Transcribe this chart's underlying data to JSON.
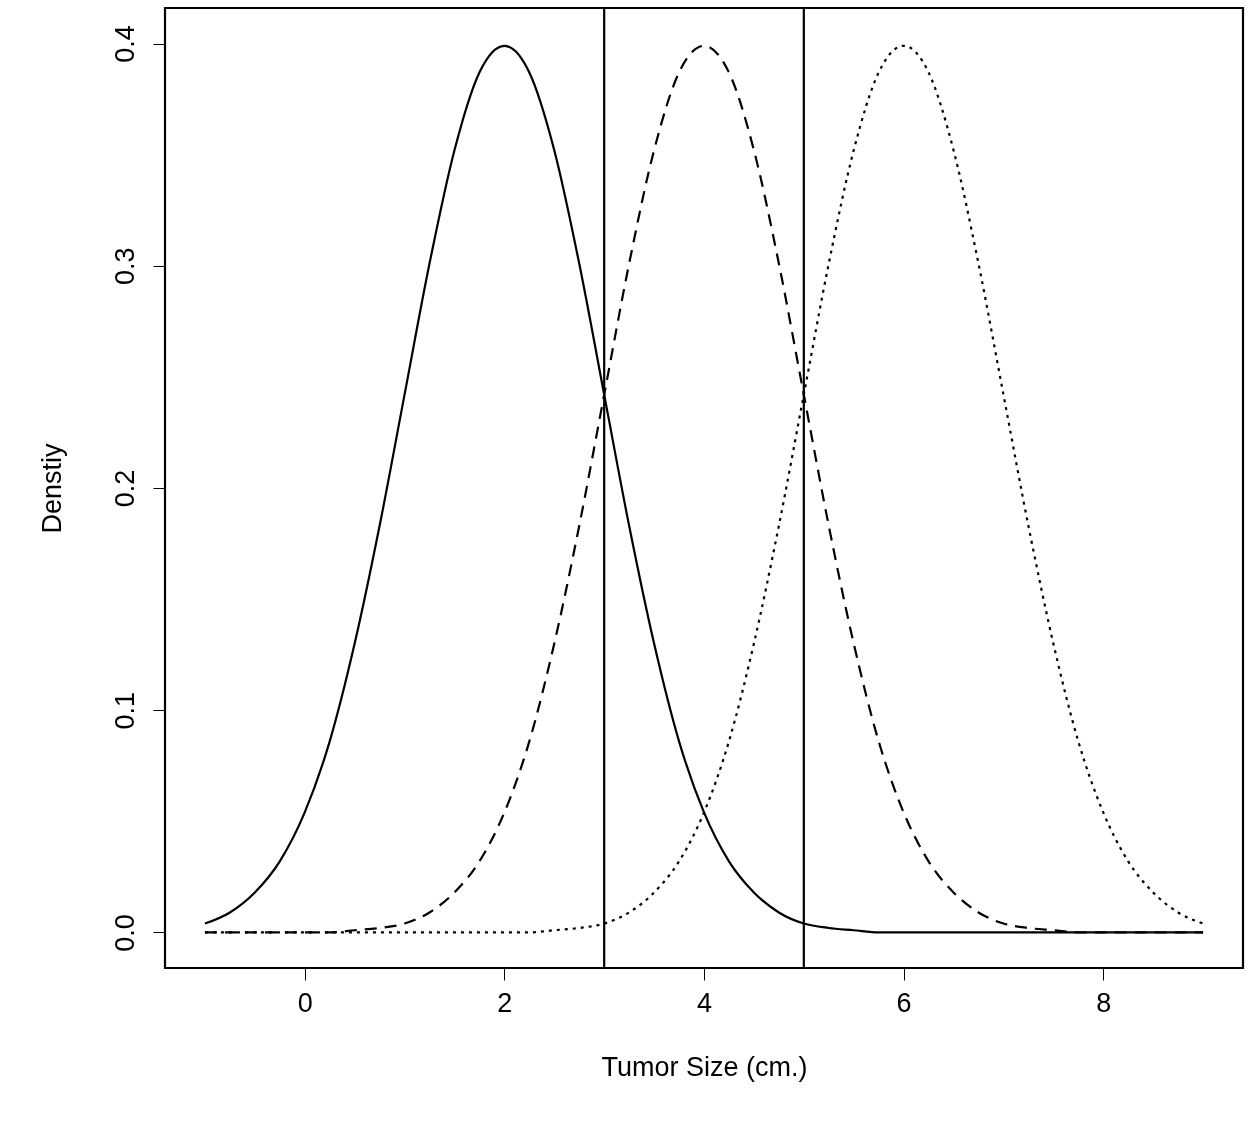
{
  "chart_data": {
    "type": "line",
    "xlabel": "Tumor Size (cm.)",
    "ylabel": "Denstiy",
    "x": [
      -1,
      -0.75,
      -0.5,
      -0.25,
      0,
      0.25,
      0.5,
      0.75,
      1,
      1.25,
      1.5,
      1.75,
      2,
      2.25,
      2.5,
      2.75,
      3,
      3.25,
      3.5,
      3.75,
      4,
      4.25,
      4.5,
      4.75,
      5,
      5.25,
      5.5,
      5.75,
      6,
      6.25,
      6.5,
      6.75,
      7,
      7.25,
      7.5,
      7.75,
      8,
      8.25,
      8.5,
      8.75,
      9
    ],
    "series": [
      {
        "color": "#000000",
        "line_style": "solid",
        "values": [
          0.004,
          0.009,
          0.018,
          0.032,
          0.054,
          0.086,
          0.13,
          0.183,
          0.242,
          0.301,
          0.352,
          0.387,
          0.399,
          0.387,
          0.352,
          0.301,
          0.242,
          0.183,
          0.13,
          0.086,
          0.054,
          0.032,
          0.018,
          0.009,
          0.004,
          0.002,
          0.001,
          0,
          0,
          0,
          0,
          0,
          0,
          0,
          0,
          0,
          0,
          0,
          0,
          0,
          0
        ]
      },
      {
        "color": "#000000",
        "line_style": "dashed",
        "values": [
          0,
          0,
          0,
          0,
          0,
          0,
          0.001,
          0.002,
          0.004,
          0.009,
          0.018,
          0.032,
          0.054,
          0.086,
          0.13,
          0.183,
          0.242,
          0.301,
          0.352,
          0.387,
          0.399,
          0.387,
          0.352,
          0.301,
          0.242,
          0.183,
          0.13,
          0.086,
          0.054,
          0.032,
          0.018,
          0.009,
          0.004,
          0.002,
          0.001,
          0,
          0,
          0,
          0,
          0,
          0
        ]
      },
      {
        "color": "#000000",
        "line_style": "dotted",
        "values": [
          0,
          0,
          0,
          0,
          0,
          0,
          0,
          0,
          0,
          0,
          0,
          0,
          0,
          0,
          0.001,
          0.002,
          0.004,
          0.009,
          0.018,
          0.032,
          0.054,
          0.086,
          0.13,
          0.183,
          0.242,
          0.301,
          0.352,
          0.387,
          0.399,
          0.387,
          0.352,
          0.301,
          0.242,
          0.183,
          0.13,
          0.086,
          0.054,
          0.032,
          0.018,
          0.009,
          0.004
        ]
      }
    ],
    "xlim": [
      -1.4,
      9.4
    ],
    "xticks": [
      0,
      2,
      4,
      6,
      8
    ],
    "ylim": [
      -0.016,
      0.416
    ],
    "yticks": [
      {
        "value": 0,
        "label": "0.0"
      },
      {
        "value": 0.1,
        "label": "0.1"
      },
      {
        "value": 0.2,
        "label": "0.2"
      },
      {
        "value": 0.3,
        "label": "0.3"
      },
      {
        "value": 0.4,
        "label": "0.4"
      }
    ],
    "ref_lines": [
      {
        "axis": "x",
        "value": 3,
        "color": "#000000"
      },
      {
        "axis": "x",
        "value": 5,
        "color": "#000000"
      }
    ],
    "grid": false
  }
}
